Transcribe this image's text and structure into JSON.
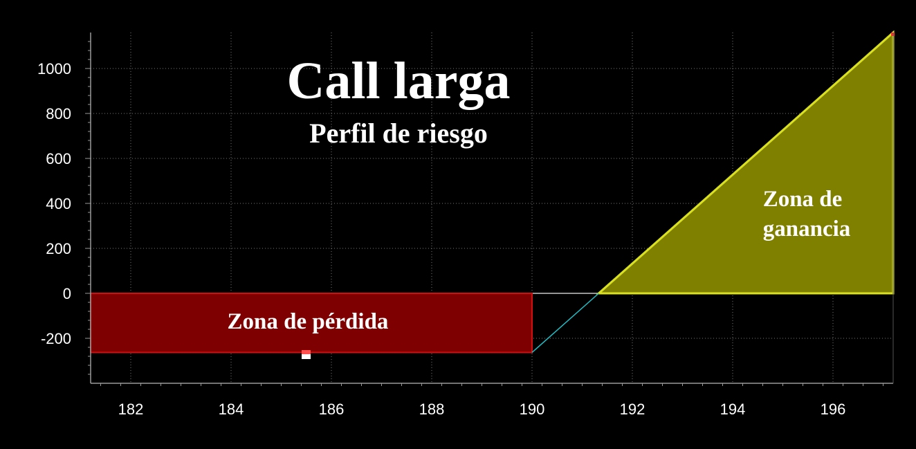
{
  "chart_data": {
    "type": "area",
    "title": "Call larga",
    "subtitle": "Perfil de riesgo",
    "xlabel": "",
    "ylabel": "",
    "xlim": [
      181.2,
      197.2
    ],
    "ylim": [
      -400,
      1160
    ],
    "x_ticks": [
      182,
      184,
      186,
      188,
      190,
      192,
      194,
      196
    ],
    "y_ticks": [
      -200,
      0,
      200,
      400,
      600,
      800,
      1000
    ],
    "grid": true,
    "strike": 190,
    "premium": 263,
    "breakeven": 191.33,
    "series": [
      {
        "x": [
          181.2,
          190,
          191.33,
          197.2
        ],
        "y": [
          -263,
          -263,
          0,
          1160
        ]
      }
    ],
    "zones": {
      "loss": {
        "label": "Zona de pérdida",
        "x": [
          181.2,
          190
        ],
        "y": [
          -263,
          0
        ]
      },
      "profit": {
        "label_line1": "Zona de",
        "label_line2": "ganancia",
        "x": [
          191.33,
          197.2
        ],
        "y": [
          0,
          1160
        ]
      }
    },
    "colors": {
      "background": "#000000",
      "axis": "#9a9a9a",
      "grid": "#7a7a7a",
      "loss_fill": "#7f0000",
      "loss_border": "#d01010",
      "profit_fill": "#808000",
      "profit_border": "#d8e020",
      "payoff_line": "#20c0c8",
      "text": "#ffffff"
    }
  }
}
